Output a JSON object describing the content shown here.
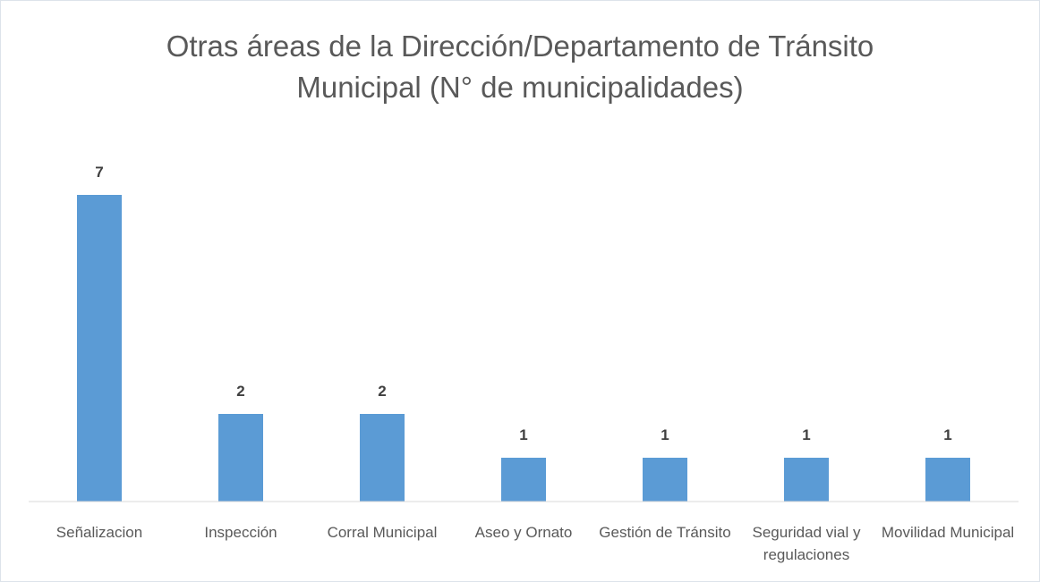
{
  "chart_data": {
    "type": "bar",
    "title": "Otras áreas de la Dirección/Departamento de Tránsito Municipal (N° de municipalidades)",
    "categories": [
      "Señalizacion",
      "Inspección",
      "Corral Municipal",
      "Aseo y Ornato",
      "Gestión de Tránsito",
      "Seguridad vial y regulaciones",
      "Movilidad Municipal"
    ],
    "values": [
      7,
      2,
      2,
      1,
      1,
      1,
      1
    ],
    "color": "#5b9bd5",
    "ylim": [
      0,
      8
    ]
  }
}
